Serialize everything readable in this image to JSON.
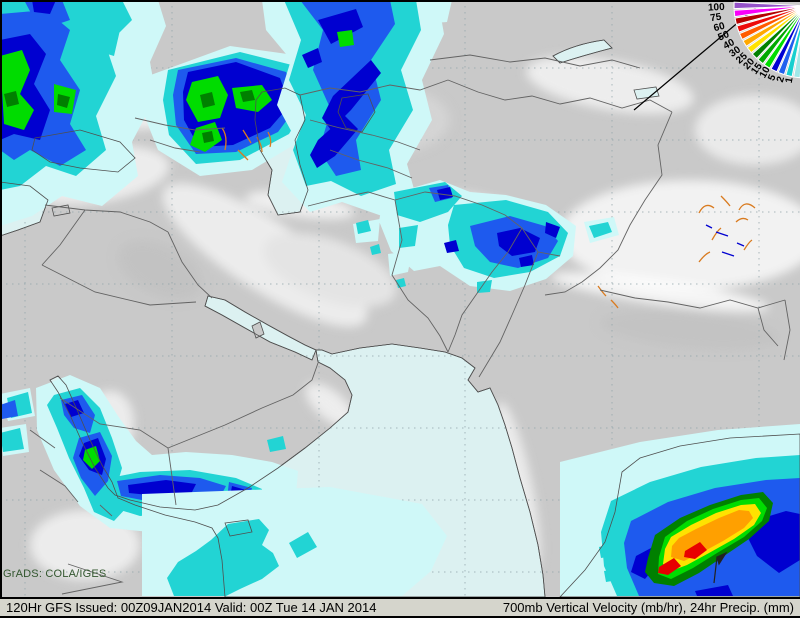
{
  "map": {
    "credit": "GrADS: COLA/IGES",
    "footer_left": "120Hr GFS Issued: 00Z09JAN2014 Valid: 00Z Tue 14 JAN 2014",
    "footer_right": "700mb Vertical Velocity (mb/hr), 24hr Precip. (mm)"
  },
  "legend": {
    "unit_levels": [
      "100",
      "75",
      "60",
      "50",
      "40",
      "30",
      "25",
      "20",
      "15",
      "10",
      "5",
      "2",
      "1"
    ],
    "colors_high_to_low": [
      "#9452C8",
      "#F800F8",
      "#B40000",
      "#EC0A0A",
      "#FF5A00",
      "#FFA800",
      "#FFE200",
      "#008000",
      "#00A800",
      "#00DC00",
      "#0000D2",
      "#2060EE",
      "#17CFCF",
      "#A0E8E8"
    ]
  },
  "palette": {
    "ocean": "#DCF1F1",
    "land": "#C9C9C9",
    "grid": "#8FA3A8",
    "coast": "#4F4F4F",
    "border": "#636363",
    "contour_orange": "#D97B20",
    "bar_bg": "#D5D5CC",
    "credit": "#33572F",
    "precip": {
      "pale": "#CFF8F8",
      "cyan": "#22D4D4",
      "blue": "#1E5AEE",
      "navy": "#0000D0",
      "green_dark": "#008000",
      "green": "#00A800",
      "green_bright": "#00DC00",
      "yellow": "#FFE200",
      "orange": "#FFA000",
      "red": "#E80000"
    }
  }
}
